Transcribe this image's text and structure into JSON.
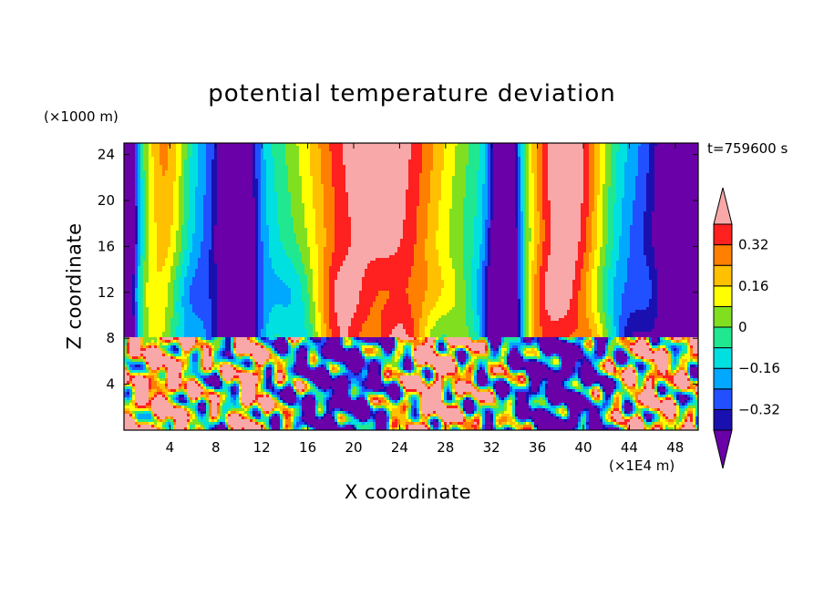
{
  "figure": {
    "title": "potential temperature deviation",
    "time_label": "t=759600 s",
    "z_unit_label": "(×1000 m)",
    "x_unit_label": "(×1E4 m)",
    "x_axis_label": "X coordinate",
    "y_axis_label": "Z coordinate"
  },
  "chart_data": {
    "type": "heatmap",
    "title": "potential temperature deviation",
    "xlabel": "X coordinate",
    "ylabel": "Z coordinate",
    "x_unit": "×1E4 m",
    "y_unit": "×1000 m",
    "xlim": [
      0,
      50
    ],
    "ylim": [
      0,
      25
    ],
    "x_ticks": [
      4,
      8,
      12,
      16,
      20,
      24,
      28,
      32,
      36,
      40,
      44,
      48
    ],
    "y_ticks": [
      4,
      8,
      12,
      16,
      20,
      24
    ],
    "colorbar": {
      "labels": [
        "0.32",
        "0.16",
        "0",
        "−0.16",
        "−0.32"
      ],
      "label_values": [
        0.32,
        0.16,
        0,
        -0.16,
        -0.32
      ],
      "levels": [
        -0.4,
        -0.32,
        -0.24,
        -0.16,
        -0.08,
        0,
        0.08,
        0.16,
        0.24,
        0.32,
        0.4
      ],
      "colors": [
        "#6a00a8",
        "#1a10b0",
        "#2050ff",
        "#00a8ff",
        "#00e0e0",
        "#20e890",
        "#80e020",
        "#ffff00",
        "#ffc000",
        "#ff8000",
        "#ff2020",
        "#f8a8a8"
      ]
    },
    "upper_layer_columns": [
      {
        "x_range": [
          0,
          6
        ],
        "description": "cold to warm transition"
      },
      {
        "x_range": [
          8,
          12
        ],
        "description": "cold column"
      },
      {
        "x_range": [
          13,
          31
        ],
        "description": "warm column"
      },
      {
        "x_range": [
          32,
          35
        ],
        "description": "cold column"
      },
      {
        "x_range": [
          36,
          42
        ],
        "description": "warm column"
      },
      {
        "x_range": [
          43,
          50
        ],
        "description": "cold column"
      }
    ],
    "layer_boundary_z": 8,
    "lower_layer": "turbulent mixed pattern"
  }
}
